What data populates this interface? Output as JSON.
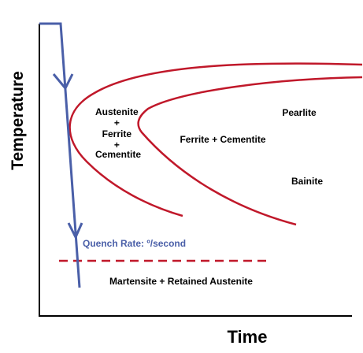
{
  "axes": {
    "x_label": "Time",
    "y_label": "Temperature"
  },
  "regions": {
    "austenite_mix": [
      "Austenite",
      "+",
      "Ferrite",
      "+",
      "Cementite"
    ],
    "ferrite_cementite": "Ferrite + Cementite",
    "pearlite": "Pearlite",
    "bainite": "Bainite",
    "martensite": "Martensite + Retained Austenite"
  },
  "quench_label": "Quench Rate: º/second",
  "colors": {
    "axis": "#000000",
    "curves": "#c0182a",
    "quench_line": "#4a5fa8",
    "text": "#000000"
  }
}
